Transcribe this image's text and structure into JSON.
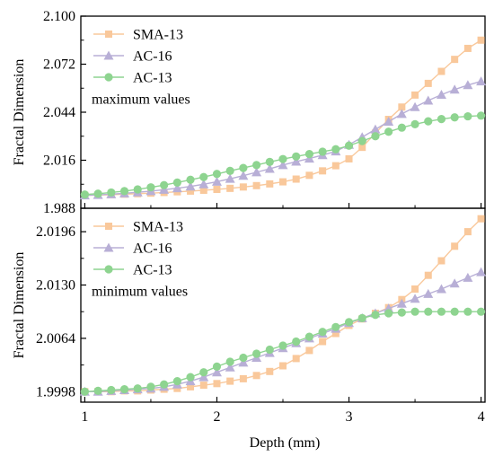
{
  "chart_data": [
    {
      "type": "line",
      "annotation": "maximum values",
      "xlabel": "",
      "ylabel": "Fractal Dimension",
      "xlim": [
        0.97,
        4.03
      ],
      "ylim": [
        1.988,
        2.1
      ],
      "yticks": [
        1.988,
        2.016,
        2.044,
        2.072,
        2.1
      ],
      "ytick_labels": [
        "1.988",
        "2.016",
        "2.044",
        "2.072",
        "2.100"
      ],
      "xticks": [
        1,
        2,
        3,
        4
      ],
      "grid": false,
      "legend_position": "top-left",
      "x": [
        1.0,
        1.1,
        1.2,
        1.3,
        1.4,
        1.5,
        1.6,
        1.7,
        1.8,
        1.9,
        2.0,
        2.1,
        2.2,
        2.3,
        2.4,
        2.5,
        2.6,
        2.7,
        2.8,
        2.9,
        3.0,
        3.1,
        3.2,
        3.3,
        3.4,
        3.5,
        3.6,
        3.7,
        3.8,
        3.9,
        4.0
      ],
      "series": [
        {
          "name": "SMA-13",
          "color": "#F9C89B",
          "marker": "square",
          "values": [
            1.9955,
            1.9957,
            1.9959,
            1.9962,
            1.9965,
            1.9968,
            1.9972,
            1.9976,
            1.998,
            1.9985,
            1.999,
            1.9996,
            2.0004,
            2.0012,
            2.0022,
            2.0034,
            2.005,
            2.0072,
            2.0098,
            2.0128,
            2.0168,
            2.0235,
            2.0318,
            2.0398,
            2.047,
            2.054,
            2.0608,
            2.0678,
            2.0748,
            2.0812,
            2.086
          ]
        },
        {
          "name": "AC-16",
          "color": "#B8AFD6",
          "marker": "triangle",
          "values": [
            1.9955,
            1.9958,
            1.9962,
            1.9967,
            1.9973,
            1.998,
            1.9988,
            1.9997,
            2.0007,
            2.002,
            2.0035,
            2.0052,
            2.007,
            2.009,
            2.011,
            2.0132,
            2.0152,
            2.017,
            2.019,
            2.0212,
            2.025,
            2.0295,
            2.034,
            2.0385,
            2.043,
            2.047,
            2.0508,
            2.0542,
            2.0572,
            2.0598,
            2.062
          ]
        },
        {
          "name": "AC-13",
          "color": "#8ED490",
          "marker": "circle",
          "values": [
            1.996,
            1.9965,
            1.9972,
            1.998,
            1.999,
            2.0002,
            2.0015,
            2.003,
            2.0046,
            2.0062,
            2.008,
            2.0098,
            2.0115,
            2.0132,
            2.015,
            2.0167,
            2.0182,
            2.0196,
            2.021,
            2.0224,
            2.0245,
            2.0272,
            2.03,
            2.0326,
            2.035,
            2.037,
            2.0387,
            2.04,
            2.041,
            2.0416,
            2.042
          ]
        }
      ]
    },
    {
      "type": "line",
      "annotation": "minimum values",
      "xlabel": "Depth (mm)",
      "ylabel": "Fractal Dimension",
      "xlim": [
        0.97,
        4.03
      ],
      "ylim": [
        1.9985,
        2.0225
      ],
      "yticks": [
        1.9998,
        2.0064,
        2.013,
        2.0196
      ],
      "ytick_labels": [
        "1.9998",
        "2.0064",
        "2.0130",
        "2.0196"
      ],
      "xticks": [
        1,
        2,
        3,
        4
      ],
      "xtick_labels": [
        "1",
        "2",
        "3",
        "4"
      ],
      "grid": false,
      "legend_position": "top-left",
      "x": [
        1.0,
        1.1,
        1.2,
        1.3,
        1.4,
        1.5,
        1.6,
        1.7,
        1.8,
        1.9,
        2.0,
        2.1,
        2.2,
        2.3,
        2.4,
        2.5,
        2.6,
        2.7,
        2.8,
        2.9,
        3.0,
        3.1,
        3.2,
        3.3,
        3.4,
        3.5,
        3.6,
        3.7,
        3.8,
        3.9,
        4.0
      ],
      "series": [
        {
          "name": "SMA-13",
          "color": "#F9C89B",
          "marker": "square",
          "values": [
            1.9998,
            1.9998,
            1.9998,
            1.9999,
            1.9999,
            2.0,
            2.0001,
            2.0002,
            2.0004,
            2.0006,
            2.0008,
            2.0011,
            2.0014,
            2.0018,
            2.0023,
            2.003,
            2.0039,
            2.0049,
            2.006,
            2.007,
            2.008,
            2.0088,
            2.0095,
            2.0102,
            2.0112,
            2.0125,
            2.0142,
            2.016,
            2.0178,
            2.0196,
            2.0212
          ]
        },
        {
          "name": "AC-16",
          "color": "#B8AFD6",
          "marker": "triangle",
          "values": [
            1.9998,
            1.9998,
            1.9999,
            2.0,
            2.0001,
            2.0002,
            2.0004,
            2.0007,
            2.0011,
            2.0016,
            2.0022,
            2.0028,
            2.0034,
            2.004,
            2.0046,
            2.0052,
            2.0058,
            2.0064,
            2.007,
            2.0076,
            2.0083,
            2.0089,
            2.0095,
            2.0101,
            2.0107,
            2.0113,
            2.0119,
            2.0125,
            2.0132,
            2.0139,
            2.0146
          ]
        },
        {
          "name": "AC-13",
          "color": "#8ED490",
          "marker": "circle",
          "values": [
            1.9998,
            1.9999,
            2.0,
            2.0001,
            2.0002,
            2.0004,
            2.0007,
            2.0011,
            2.0016,
            2.0022,
            2.0029,
            2.0035,
            2.004,
            2.0045,
            2.005,
            2.0055,
            2.006,
            2.0066,
            2.0072,
            2.0078,
            2.0084,
            2.0089,
            2.0093,
            2.0095,
            2.0096,
            2.0097,
            2.0097,
            2.0097,
            2.0097,
            2.0097,
            2.0097
          ]
        }
      ]
    }
  ]
}
